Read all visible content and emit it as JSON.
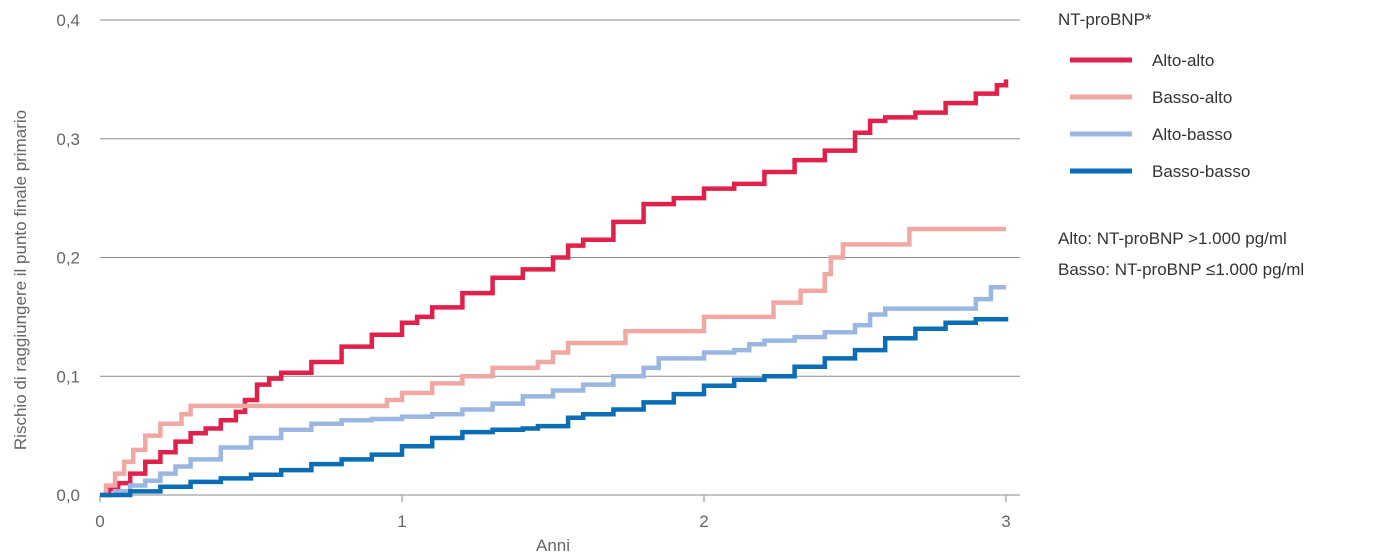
{
  "chart_data": {
    "type": "line",
    "title": "",
    "xlabel": "Anni",
    "ylabel": "Rischio di raggiungere il punto finale primario",
    "xlim": [
      0,
      3
    ],
    "ylim": [
      0,
      0.4
    ],
    "x_ticks": [
      {
        "value": 0,
        "label": "0"
      },
      {
        "value": 1,
        "label": "1"
      },
      {
        "value": 2,
        "label": "2"
      },
      {
        "value": 3,
        "label": "3"
      }
    ],
    "y_ticks": [
      {
        "value": 0,
        "label": "0,0"
      },
      {
        "value": 0.1,
        "label": "0,1"
      },
      {
        "value": 0.2,
        "label": "0,2"
      },
      {
        "value": 0.3,
        "label": "0,3"
      },
      {
        "value": 0.4,
        "label": "0,4"
      }
    ],
    "grid": "horizontal",
    "legend_position": "right",
    "legend_title": "NT-proBNP*",
    "series": [
      {
        "name": "Alto-alto",
        "color": "#e0214b",
        "points": [
          [
            0,
            0
          ],
          [
            0.03,
            0.005
          ],
          [
            0.06,
            0.01
          ],
          [
            0.1,
            0.018
          ],
          [
            0.15,
            0.028
          ],
          [
            0.2,
            0.036
          ],
          [
            0.25,
            0.045
          ],
          [
            0.3,
            0.052
          ],
          [
            0.35,
            0.056
          ],
          [
            0.4,
            0.063
          ],
          [
            0.45,
            0.07
          ],
          [
            0.48,
            0.08
          ],
          [
            0.52,
            0.093
          ],
          [
            0.56,
            0.098
          ],
          [
            0.6,
            0.103
          ],
          [
            0.7,
            0.112
          ],
          [
            0.8,
            0.125
          ],
          [
            0.9,
            0.135
          ],
          [
            1.0,
            0.145
          ],
          [
            1.05,
            0.15
          ],
          [
            1.1,
            0.158
          ],
          [
            1.2,
            0.17
          ],
          [
            1.3,
            0.183
          ],
          [
            1.4,
            0.19
          ],
          [
            1.5,
            0.2
          ],
          [
            1.55,
            0.21
          ],
          [
            1.6,
            0.215
          ],
          [
            1.7,
            0.23
          ],
          [
            1.8,
            0.245
          ],
          [
            1.9,
            0.25
          ],
          [
            2.0,
            0.258
          ],
          [
            2.1,
            0.262
          ],
          [
            2.2,
            0.272
          ],
          [
            2.3,
            0.282
          ],
          [
            2.4,
            0.29
          ],
          [
            2.5,
            0.305
          ],
          [
            2.55,
            0.315
          ],
          [
            2.6,
            0.318
          ],
          [
            2.7,
            0.322
          ],
          [
            2.8,
            0.33
          ],
          [
            2.9,
            0.338
          ],
          [
            2.97,
            0.345
          ],
          [
            3.0,
            0.35
          ]
        ]
      },
      {
        "name": "Basso-alto",
        "color": "#f0a8a4",
        "points": [
          [
            0,
            0
          ],
          [
            0.02,
            0.008
          ],
          [
            0.05,
            0.018
          ],
          [
            0.08,
            0.028
          ],
          [
            0.11,
            0.038
          ],
          [
            0.15,
            0.05
          ],
          [
            0.2,
            0.06
          ],
          [
            0.27,
            0.068
          ],
          [
            0.3,
            0.075
          ],
          [
            0.5,
            0.075
          ],
          [
            0.9,
            0.075
          ],
          [
            0.95,
            0.08
          ],
          [
            1.0,
            0.086
          ],
          [
            1.1,
            0.094
          ],
          [
            1.2,
            0.1
          ],
          [
            1.3,
            0.107
          ],
          [
            1.45,
            0.112
          ],
          [
            1.5,
            0.12
          ],
          [
            1.55,
            0.128
          ],
          [
            1.74,
            0.138
          ],
          [
            1.92,
            0.138
          ],
          [
            2.0,
            0.15
          ],
          [
            2.2,
            0.15
          ],
          [
            2.23,
            0.162
          ],
          [
            2.32,
            0.172
          ],
          [
            2.4,
            0.186
          ],
          [
            2.42,
            0.2
          ],
          [
            2.46,
            0.211
          ],
          [
            2.68,
            0.224
          ],
          [
            3.0,
            0.224
          ]
        ]
      },
      {
        "name": "Alto-basso",
        "color": "#9bb6e0",
        "points": [
          [
            0,
            0
          ],
          [
            0.05,
            0.003
          ],
          [
            0.1,
            0.008
          ],
          [
            0.15,
            0.012
          ],
          [
            0.2,
            0.018
          ],
          [
            0.25,
            0.024
          ],
          [
            0.3,
            0.03
          ],
          [
            0.4,
            0.04
          ],
          [
            0.5,
            0.048
          ],
          [
            0.6,
            0.055
          ],
          [
            0.7,
            0.06
          ],
          [
            0.8,
            0.063
          ],
          [
            0.9,
            0.064
          ],
          [
            1.0,
            0.066
          ],
          [
            1.1,
            0.068
          ],
          [
            1.2,
            0.072
          ],
          [
            1.3,
            0.077
          ],
          [
            1.4,
            0.083
          ],
          [
            1.5,
            0.088
          ],
          [
            1.6,
            0.093
          ],
          [
            1.7,
            0.1
          ],
          [
            1.8,
            0.107
          ],
          [
            1.85,
            0.115
          ],
          [
            2.0,
            0.12
          ],
          [
            2.1,
            0.122
          ],
          [
            2.15,
            0.127
          ],
          [
            2.2,
            0.13
          ],
          [
            2.3,
            0.133
          ],
          [
            2.4,
            0.137
          ],
          [
            2.5,
            0.143
          ],
          [
            2.55,
            0.152
          ],
          [
            2.6,
            0.157
          ],
          [
            2.8,
            0.157
          ],
          [
            2.9,
            0.165
          ],
          [
            2.95,
            0.175
          ],
          [
            3.0,
            0.175
          ]
        ]
      },
      {
        "name": "Basso-basso",
        "color": "#0b6db5",
        "points": [
          [
            0,
            0
          ],
          [
            0.1,
            0.003
          ],
          [
            0.2,
            0.007
          ],
          [
            0.3,
            0.011
          ],
          [
            0.4,
            0.014
          ],
          [
            0.5,
            0.017
          ],
          [
            0.6,
            0.021
          ],
          [
            0.7,
            0.026
          ],
          [
            0.8,
            0.03
          ],
          [
            0.9,
            0.034
          ],
          [
            1.0,
            0.041
          ],
          [
            1.1,
            0.048
          ],
          [
            1.2,
            0.053
          ],
          [
            1.3,
            0.055
          ],
          [
            1.4,
            0.056
          ],
          [
            1.45,
            0.058
          ],
          [
            1.55,
            0.065
          ],
          [
            1.6,
            0.068
          ],
          [
            1.7,
            0.072
          ],
          [
            1.8,
            0.078
          ],
          [
            1.9,
            0.085
          ],
          [
            2.0,
            0.092
          ],
          [
            2.1,
            0.097
          ],
          [
            2.2,
            0.1
          ],
          [
            2.3,
            0.108
          ],
          [
            2.4,
            0.115
          ],
          [
            2.5,
            0.122
          ],
          [
            2.6,
            0.132
          ],
          [
            2.7,
            0.14
          ],
          [
            2.8,
            0.145
          ],
          [
            2.9,
            0.148
          ],
          [
            3.0,
            0.15
          ]
        ]
      }
    ],
    "notes": [
      "Alto: NT-proBNP >1.000 pg/ml",
      "Basso: NT-proBNP ≤1.000 pg/ml"
    ]
  }
}
